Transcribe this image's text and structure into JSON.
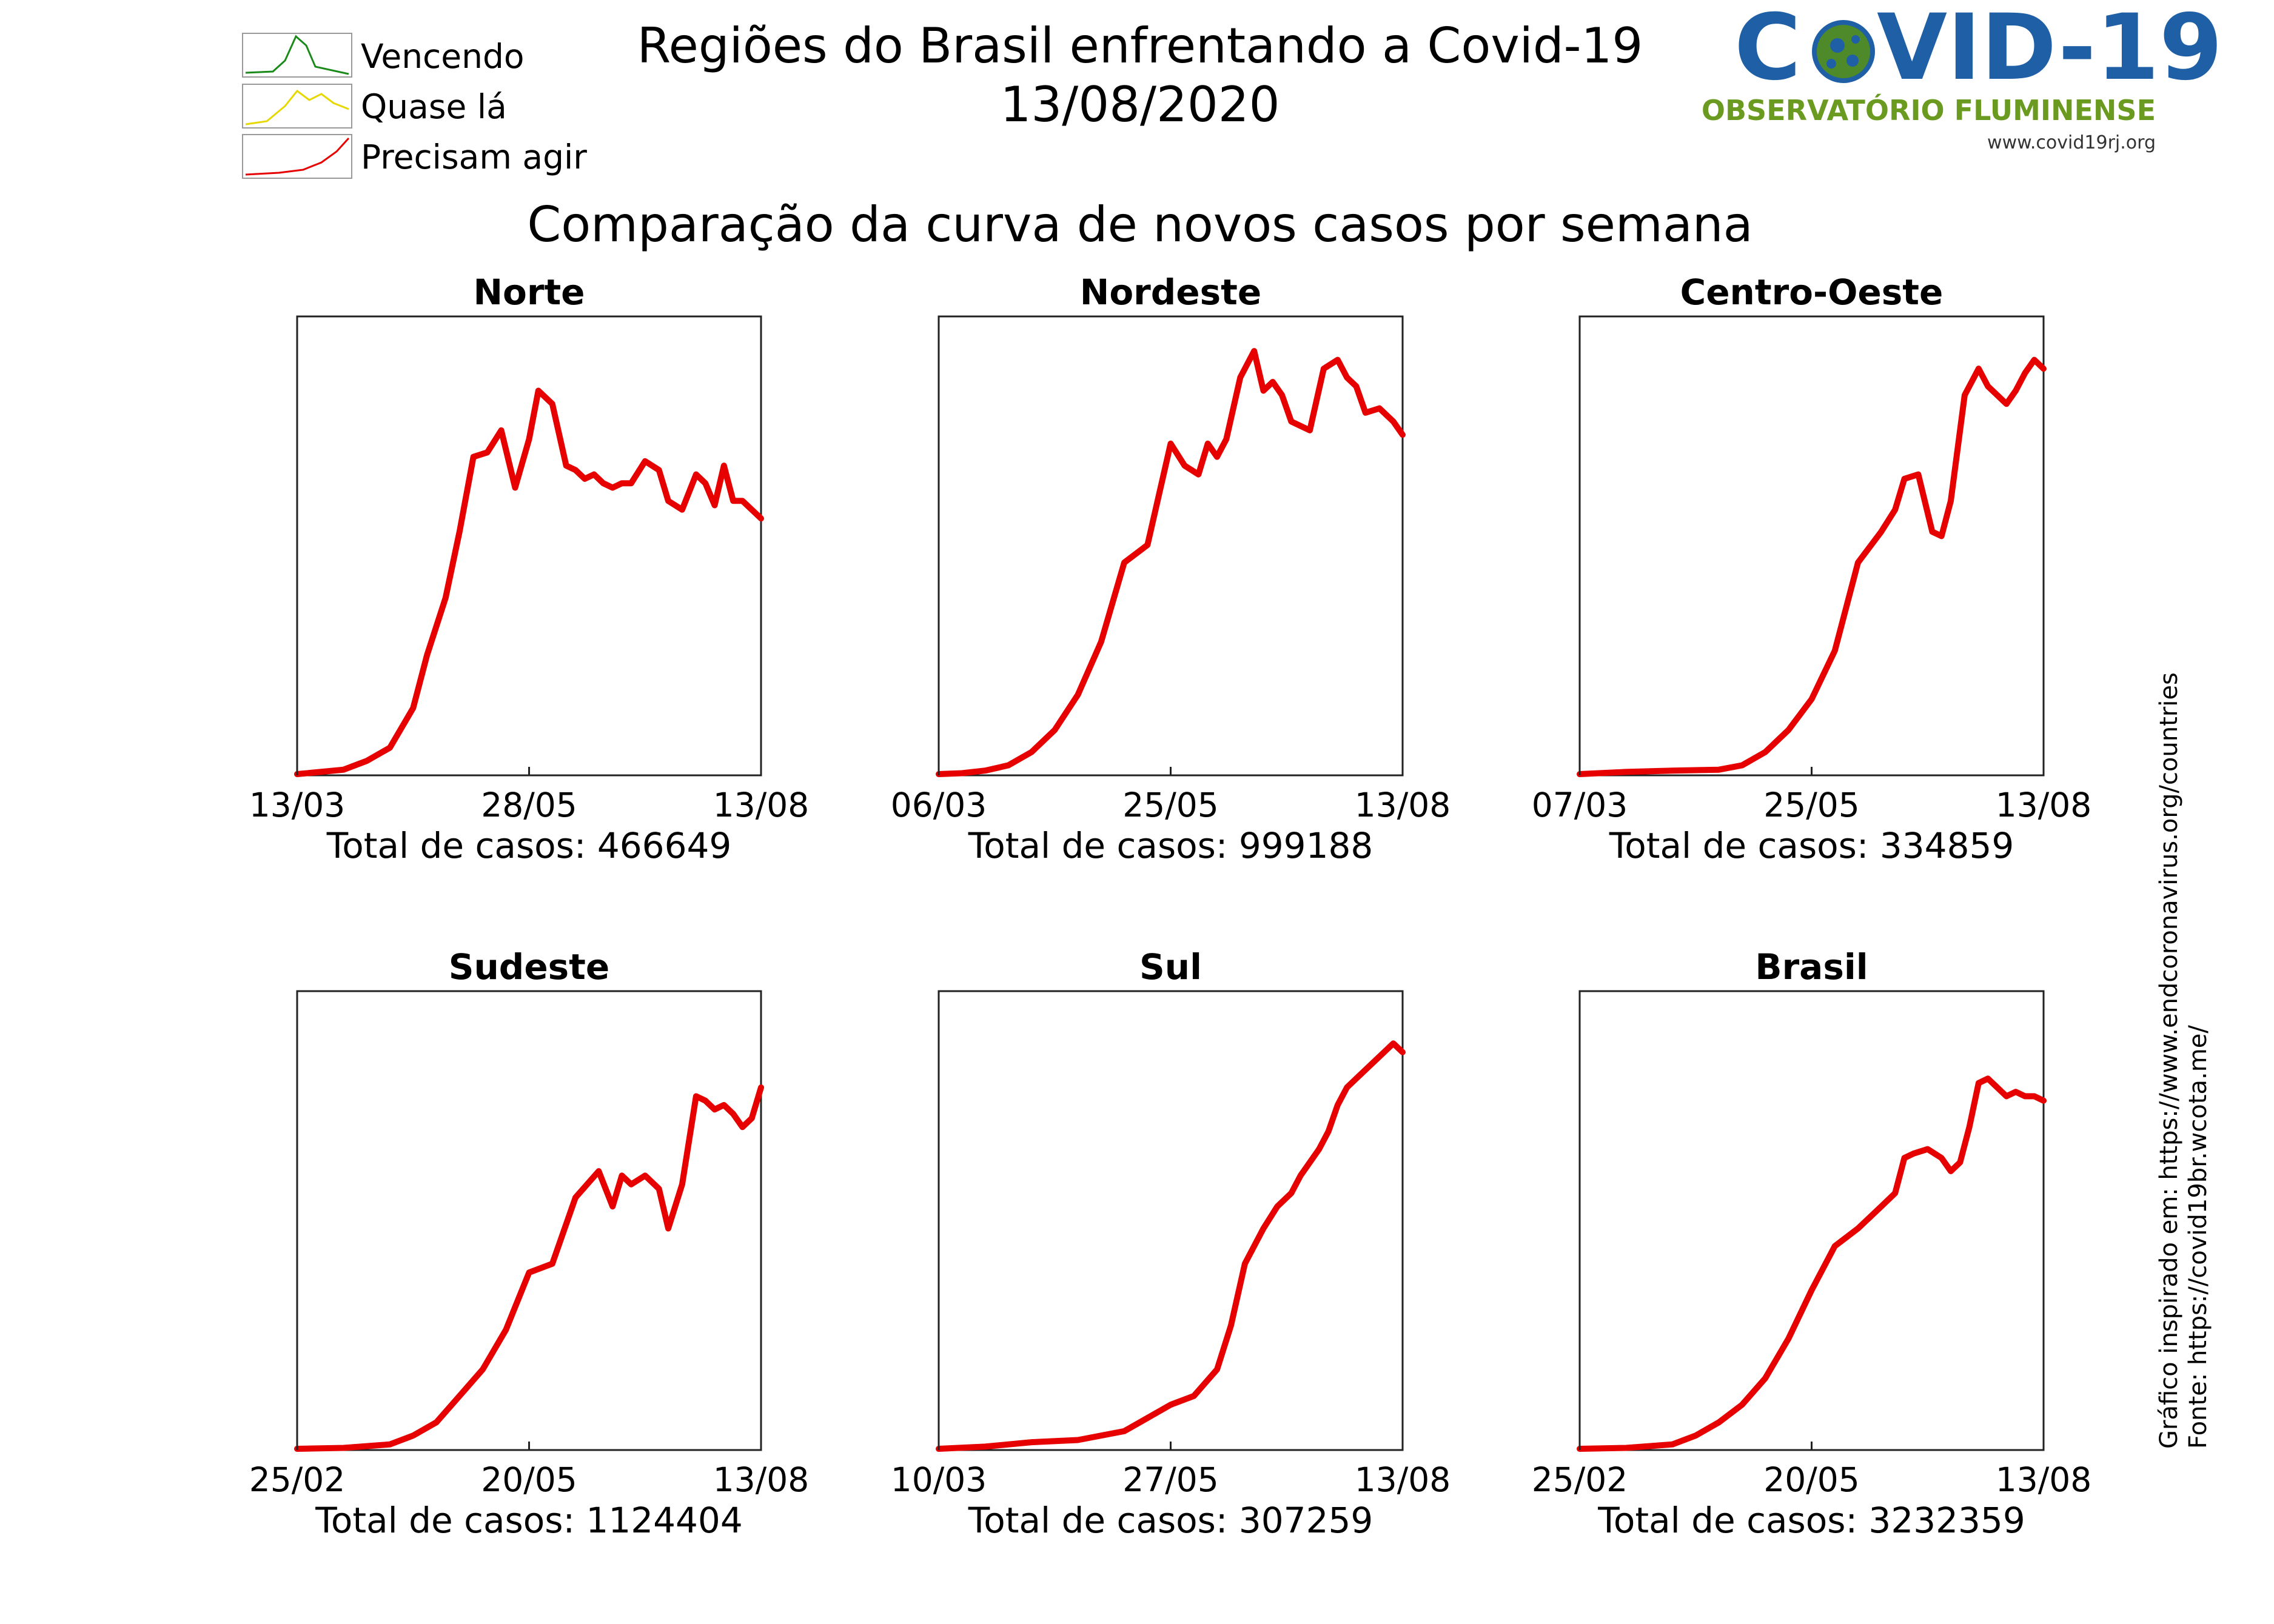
{
  "header": {
    "title": "Regiões do Brasil enfrentando a Covid-19",
    "date": "13/08/2020",
    "subtitle": "Comparação da curva de novos casos por semana"
  },
  "legend": [
    {
      "label": "Vencendo",
      "color": "#1a8a1a"
    },
    {
      "label": "Quase lá",
      "color": "#e6d800"
    },
    {
      "label": "Precisam agir",
      "color": "#e60000"
    }
  ],
  "logo": {
    "title_left": "C",
    "title_right": "VID-19",
    "subtitle": "OBSERVATÓRIO FLUMINENSE",
    "url": "www.covid19rj.org",
    "colors": {
      "blue": "#1f5fa6",
      "green": "#6a9a1f"
    }
  },
  "side_notes": {
    "line1": "Gráfico inspirado em: https://www.endcoronavirus.org/countries",
    "line2": "Fonte: https://covid19br.wcota.me/"
  },
  "chart_data": [
    {
      "type": "line",
      "title": "Norte",
      "color": "#e60000",
      "xticks": [
        "13/03",
        "28/05",
        "13/08"
      ],
      "total_label": "Total de casos: 466649",
      "x": [
        0,
        0.05,
        0.1,
        0.15,
        0.2,
        0.25,
        0.28,
        0.32,
        0.35,
        0.38,
        0.41,
        0.44,
        0.47,
        0.5,
        0.52,
        0.55,
        0.58,
        0.6,
        0.62,
        0.64,
        0.66,
        0.68,
        0.7,
        0.72,
        0.75,
        0.78,
        0.8,
        0.83,
        0.86,
        0.88,
        0.9,
        0.92,
        0.94,
        0.96,
        0.98,
        1.0
      ],
      "y": [
        0.0,
        0.005,
        0.01,
        0.03,
        0.06,
        0.15,
        0.27,
        0.4,
        0.55,
        0.72,
        0.73,
        0.78,
        0.65,
        0.76,
        0.87,
        0.84,
        0.7,
        0.69,
        0.67,
        0.68,
        0.66,
        0.65,
        0.66,
        0.66,
        0.71,
        0.69,
        0.62,
        0.6,
        0.68,
        0.66,
        0.61,
        0.7,
        0.62,
        0.62,
        0.6,
        0.58
      ]
    },
    {
      "type": "line",
      "title": "Nordeste",
      "color": "#e60000",
      "xticks": [
        "06/03",
        "25/05",
        "13/08"
      ],
      "total_label": "Total de casos: 999188",
      "x": [
        0,
        0.05,
        0.1,
        0.15,
        0.2,
        0.25,
        0.3,
        0.35,
        0.4,
        0.45,
        0.5,
        0.53,
        0.56,
        0.58,
        0.6,
        0.62,
        0.65,
        0.68,
        0.7,
        0.72,
        0.74,
        0.76,
        0.8,
        0.83,
        0.86,
        0.88,
        0.9,
        0.92,
        0.95,
        0.98,
        1.0
      ],
      "y": [
        0.0,
        0.002,
        0.008,
        0.02,
        0.05,
        0.1,
        0.18,
        0.3,
        0.48,
        0.52,
        0.75,
        0.7,
        0.68,
        0.75,
        0.72,
        0.76,
        0.9,
        0.96,
        0.87,
        0.89,
        0.86,
        0.8,
        0.78,
        0.92,
        0.94,
        0.9,
        0.88,
        0.82,
        0.83,
        0.8,
        0.77
      ]
    },
    {
      "type": "line",
      "title": "Centro-Oeste",
      "color": "#e60000",
      "xticks": [
        "07/03",
        "25/05",
        "13/08"
      ],
      "total_label": "Total de casos: 334859",
      "x": [
        0,
        0.1,
        0.2,
        0.3,
        0.35,
        0.4,
        0.45,
        0.5,
        0.55,
        0.6,
        0.65,
        0.68,
        0.7,
        0.73,
        0.76,
        0.78,
        0.8,
        0.83,
        0.86,
        0.88,
        0.9,
        0.92,
        0.94,
        0.96,
        0.98,
        1.0
      ],
      "y": [
        0.0,
        0.005,
        0.008,
        0.01,
        0.02,
        0.05,
        0.1,
        0.17,
        0.28,
        0.48,
        0.55,
        0.6,
        0.67,
        0.68,
        0.55,
        0.54,
        0.62,
        0.86,
        0.92,
        0.88,
        0.86,
        0.84,
        0.87,
        0.91,
        0.94,
        0.92
      ]
    },
    {
      "type": "line",
      "title": "Sudeste",
      "color": "#e60000",
      "xticks": [
        "25/02",
        "20/05",
        "13/08"
      ],
      "total_label": "Total de casos: 1124404",
      "x": [
        0,
        0.1,
        0.2,
        0.25,
        0.3,
        0.35,
        0.4,
        0.45,
        0.5,
        0.55,
        0.6,
        0.65,
        0.68,
        0.7,
        0.72,
        0.75,
        0.78,
        0.8,
        0.83,
        0.86,
        0.88,
        0.9,
        0.92,
        0.94,
        0.96,
        0.98,
        1.0
      ],
      "y": [
        0.0,
        0.002,
        0.01,
        0.03,
        0.06,
        0.12,
        0.18,
        0.27,
        0.4,
        0.42,
        0.57,
        0.63,
        0.55,
        0.62,
        0.6,
        0.62,
        0.59,
        0.5,
        0.6,
        0.8,
        0.79,
        0.77,
        0.78,
        0.76,
        0.73,
        0.75,
        0.82
      ]
    },
    {
      "type": "line",
      "title": "Sul",
      "color": "#e60000",
      "xticks": [
        "10/03",
        "27/05",
        "13/08"
      ],
      "total_label": "Total de casos: 307259",
      "x": [
        0,
        0.1,
        0.2,
        0.3,
        0.4,
        0.45,
        0.5,
        0.55,
        0.6,
        0.63,
        0.66,
        0.7,
        0.73,
        0.76,
        0.78,
        0.8,
        0.82,
        0.84,
        0.86,
        0.88,
        0.9,
        0.92,
        0.94,
        0.96,
        0.98,
        1.0
      ],
      "y": [
        0.0,
        0.005,
        0.015,
        0.02,
        0.04,
        0.07,
        0.1,
        0.12,
        0.18,
        0.28,
        0.42,
        0.5,
        0.55,
        0.58,
        0.62,
        0.65,
        0.68,
        0.72,
        0.78,
        0.82,
        0.84,
        0.86,
        0.88,
        0.9,
        0.92,
        0.9
      ]
    },
    {
      "type": "line",
      "title": "Brasil",
      "color": "#e60000",
      "xticks": [
        "25/02",
        "20/05",
        "13/08"
      ],
      "total_label": "Total de casos: 3232359",
      "x": [
        0,
        0.1,
        0.2,
        0.25,
        0.3,
        0.35,
        0.4,
        0.45,
        0.5,
        0.55,
        0.6,
        0.65,
        0.68,
        0.7,
        0.72,
        0.75,
        0.78,
        0.8,
        0.82,
        0.84,
        0.86,
        0.88,
        0.9,
        0.92,
        0.94,
        0.96,
        0.98,
        1.0
      ],
      "y": [
        0.0,
        0.002,
        0.01,
        0.03,
        0.06,
        0.1,
        0.16,
        0.25,
        0.36,
        0.46,
        0.5,
        0.55,
        0.58,
        0.66,
        0.67,
        0.68,
        0.66,
        0.63,
        0.65,
        0.73,
        0.83,
        0.84,
        0.82,
        0.8,
        0.81,
        0.8,
        0.8,
        0.79
      ]
    }
  ]
}
